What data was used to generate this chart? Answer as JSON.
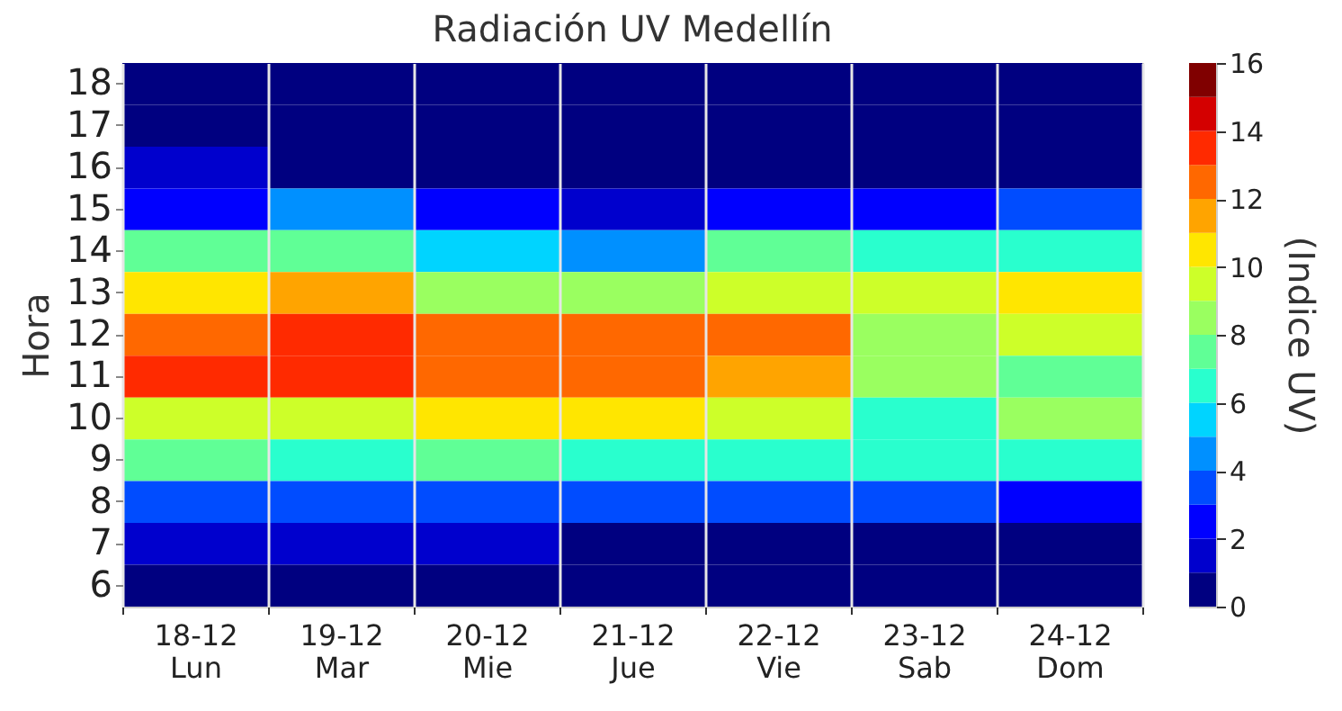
{
  "chart_data": {
    "type": "heatmap",
    "title": "Radiación UV Medellín",
    "ylabel": "Hora",
    "clabel": "(Indice UV)",
    "categories": [
      "18-12\nLun",
      "19-12\nMar",
      "20-12\nMie",
      "21-12\nJue",
      "22-12\nVie",
      "23-12\nSab",
      "24-12\nDom"
    ],
    "y_categories": [
      "18",
      "17",
      "16",
      "15",
      "14",
      "13",
      "12",
      "11",
      "10",
      "9",
      "8",
      "7",
      "6"
    ],
    "cells": [
      [
        0.5,
        0.5,
        0.5,
        0.5,
        0.5,
        0.5,
        0.5
      ],
      [
        0.5,
        0.5,
        0.5,
        0.5,
        0.5,
        0.5,
        0.5
      ],
      [
        1.5,
        0.5,
        0.5,
        0.5,
        0.5,
        0.5,
        0.5
      ],
      [
        2.5,
        4.5,
        2.5,
        1.5,
        2.5,
        2.5,
        3.5
      ],
      [
        7.5,
        7.5,
        5.5,
        4.5,
        7.5,
        6.5,
        6.5
      ],
      [
        10.5,
        11.5,
        8.5,
        8.5,
        9.5,
        9.5,
        10.5
      ],
      [
        12.5,
        13.5,
        12.5,
        12.5,
        12.5,
        8.5,
        9.5
      ],
      [
        13.5,
        13.5,
        12.5,
        12.5,
        11.5,
        8.5,
        7.5
      ],
      [
        9.5,
        9.5,
        10.5,
        10.5,
        9.5,
        6.5,
        8.5
      ],
      [
        7.5,
        6.5,
        7.5,
        6.5,
        6.5,
        6.5,
        6.5
      ],
      [
        3.5,
        3.5,
        3.5,
        3.5,
        3.5,
        3.5,
        2.5
      ],
      [
        1.5,
        1.5,
        1.5,
        0.5,
        0.5,
        0.5,
        0.5
      ],
      [
        0.5,
        0.5,
        0.5,
        0.5,
        0.5,
        0.5,
        0.5
      ]
    ],
    "clim": [
      0,
      16
    ],
    "cticks": [
      0,
      2,
      4,
      6,
      8,
      10,
      12,
      14,
      16
    ],
    "colors": [
      "#000080",
      "#0000cd",
      "#0000ff",
      "#004cff",
      "#0090ff",
      "#00d4ff",
      "#29ffce",
      "#60ff96",
      "#9aff60",
      "#cdff29",
      "#ffe600",
      "#ffa400",
      "#ff6800",
      "#ff2a00",
      "#d40000",
      "#800000"
    ],
    "grid": "x"
  }
}
